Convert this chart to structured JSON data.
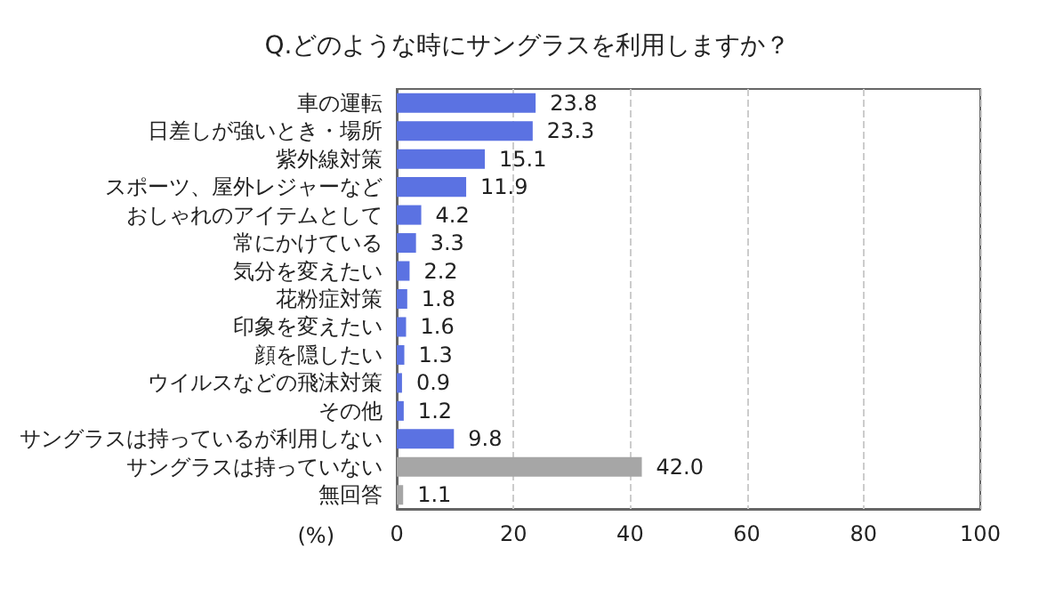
{
  "chart_data": {
    "type": "bar",
    "orientation": "horizontal",
    "title": "Q.どのような時にサングラスを利用しますか？",
    "xlabel": "(%)",
    "categories": [
      "車の運転",
      "日差しが強いとき・場所",
      "紫外線対策",
      "スポーツ、屋外レジャーなど",
      "おしゃれのアイテムとして",
      "常にかけている",
      "気分を変えたい",
      "花粉症対策",
      "印象を変えたい",
      "顔を隠したい",
      "ウイルスなどの飛沫対策",
      "その他",
      "サングラスは持っているが利用しない",
      "サングラスは持っていない",
      "無回答"
    ],
    "values": [
      23.8,
      23.3,
      15.1,
      11.9,
      4.2,
      3.3,
      2.2,
      1.8,
      1.6,
      1.3,
      0.9,
      1.2,
      9.8,
      42.0,
      1.1
    ],
    "colors": [
      "#5b72e2",
      "#5b72e2",
      "#5b72e2",
      "#5b72e2",
      "#5b72e2",
      "#5b72e2",
      "#5b72e2",
      "#5b72e2",
      "#5b72e2",
      "#5b72e2",
      "#5b72e2",
      "#5b72e2",
      "#5b72e2",
      "#a6a6a6",
      "#a6a6a6"
    ],
    "xlim": [
      0,
      100
    ],
    "xticks": [
      0,
      20,
      40,
      60,
      80,
      100
    ],
    "value_labels": [
      "23.8",
      "23.3",
      "15.1",
      "11.9",
      "4.2",
      "3.3",
      "2.2",
      "1.8",
      "1.6",
      "1.3",
      "0.9",
      "1.2",
      "9.8",
      "42.0",
      "1.1"
    ],
    "grid": "x"
  }
}
